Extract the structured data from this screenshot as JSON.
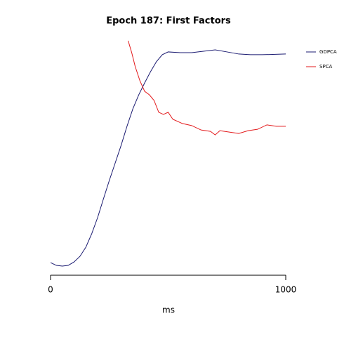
{
  "chart_data": {
    "type": "line",
    "title": "Epoch 187: First Factors",
    "xlabel": "ms",
    "xlim": [
      0,
      1000
    ],
    "xticks": [
      0,
      1000
    ],
    "ylim": [
      0,
      1.05
    ],
    "series": [
      {
        "name": "GDPCA",
        "color": "#191970",
        "x": [
          0,
          25,
          50,
          75,
          100,
          125,
          150,
          175,
          200,
          225,
          250,
          275,
          300,
          325,
          350,
          375,
          400,
          425,
          450,
          475,
          500,
          550,
          600,
          650,
          700,
          750,
          800,
          850,
          900,
          1000
        ],
        "values": [
          0.054,
          0.042,
          0.039,
          0.042,
          0.057,
          0.081,
          0.12,
          0.178,
          0.247,
          0.328,
          0.407,
          0.482,
          0.557,
          0.639,
          0.714,
          0.774,
          0.825,
          0.873,
          0.916,
          0.946,
          0.958,
          0.955,
          0.955,
          0.961,
          0.967,
          0.958,
          0.949,
          0.946,
          0.946,
          0.949
        ]
      },
      {
        "name": "SPCA",
        "color": "#e31a1c",
        "x": [
          330,
          345,
          360,
          380,
          400,
          420,
          440,
          460,
          480,
          500,
          520,
          560,
          600,
          640,
          680,
          700,
          720,
          760,
          800,
          840,
          880,
          920,
          960,
          1000
        ],
        "values": [
          1.006,
          0.955,
          0.895,
          0.834,
          0.789,
          0.774,
          0.75,
          0.699,
          0.69,
          0.699,
          0.669,
          0.651,
          0.642,
          0.623,
          0.617,
          0.602,
          0.62,
          0.614,
          0.608,
          0.62,
          0.626,
          0.645,
          0.639,
          0.639
        ]
      }
    ],
    "legend": "upper right"
  }
}
